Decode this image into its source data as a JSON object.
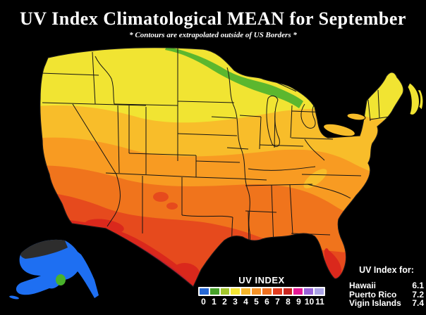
{
  "title": "UV Index Climatological MEAN for September",
  "subtitle": "* Contours are extrapolated outside of US Borders *",
  "legend": {
    "label": "UV INDEX",
    "scale": [
      {
        "value": "0",
        "color": "#2668d6"
      },
      {
        "value": "1",
        "color": "#47a12a"
      },
      {
        "value": "2",
        "color": "#a3c62c"
      },
      {
        "value": "3",
        "color": "#f4e534"
      },
      {
        "value": "4",
        "color": "#f6b52a"
      },
      {
        "value": "5",
        "color": "#f59226"
      },
      {
        "value": "6",
        "color": "#ef7120"
      },
      {
        "value": "7",
        "color": "#e23d20"
      },
      {
        "value": "8",
        "color": "#c92721"
      },
      {
        "value": "9",
        "color": "#e51a96"
      },
      {
        "value": "10",
        "color": "#9a64d9"
      },
      {
        "value": "11",
        "color": "#aba4e6"
      }
    ]
  },
  "uv_index_for": {
    "heading": "UV Index for:",
    "locations": [
      {
        "name": "Hawaii",
        "value": "6.1"
      },
      {
        "name": "Puerto Rico",
        "value": "7.2"
      },
      {
        "name": "Vigin Islands",
        "value": "7.4"
      }
    ]
  },
  "map_colors": {
    "band_green": "#5cb72e",
    "band_yellow": "#f1e432",
    "band_gold": "#f8bd2a",
    "band_orange": "#f89b22",
    "band_darkorange": "#f0741c",
    "band_redorange": "#e64a1d",
    "band_red": "#da281c",
    "band_crimson": "#c01f30",
    "alaska_blue": "#1e6ff2",
    "alaska_dark": "#2d2d2d",
    "alaska_green": "#49b22b",
    "border_line": "#141414"
  }
}
